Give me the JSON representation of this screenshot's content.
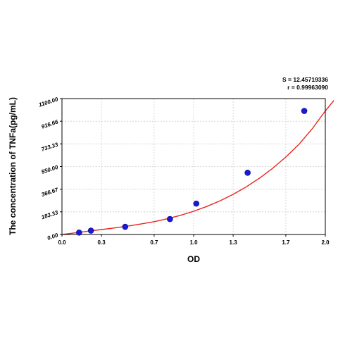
{
  "stats": {
    "s_text": "S = 12.45719336",
    "r_text": "r = 0.99963090"
  },
  "chart_data": {
    "type": "scatter",
    "title": "",
    "xlabel": "OD",
    "ylabel": "The concentration of TNFa(pg/mL)",
    "xlim": [
      0.0,
      2.0
    ],
    "ylim": [
      0.0,
      1100.0
    ],
    "x_ticks": [
      0.0,
      0.3,
      0.7,
      1.0,
      1.3,
      1.7,
      2.0
    ],
    "x_tick_labels": [
      "0.0",
      "0.3",
      "0.7",
      "1.0",
      "1.3",
      "1.7",
      "2.0"
    ],
    "y_ticks": [
      0.0,
      183.33,
      366.67,
      550.0,
      733.33,
      916.66,
      1100.0
    ],
    "y_tick_labels": [
      "0.00",
      "183.33",
      "366.67",
      "550.00",
      "733.33",
      "916.66",
      "1100.00"
    ],
    "grid": true,
    "series": [
      {
        "marker_color": "#1a1ad6",
        "points": [
          {
            "x": 0.13,
            "y": 15.6
          },
          {
            "x": 0.22,
            "y": 31.2
          },
          {
            "x": 0.48,
            "y": 62.5
          },
          {
            "x": 0.82,
            "y": 125
          },
          {
            "x": 1.02,
            "y": 250
          },
          {
            "x": 1.41,
            "y": 500
          },
          {
            "x": 1.84,
            "y": 1000
          }
        ]
      }
    ],
    "fit_curve": {
      "color": "#e8251c",
      "points": [
        {
          "x": 0.0,
          "y": 0
        },
        {
          "x": 0.1,
          "y": 13
        },
        {
          "x": 0.2,
          "y": 27
        },
        {
          "x": 0.3,
          "y": 40
        },
        {
          "x": 0.4,
          "y": 53
        },
        {
          "x": 0.5,
          "y": 68
        },
        {
          "x": 0.6,
          "y": 85
        },
        {
          "x": 0.7,
          "y": 104
        },
        {
          "x": 0.8,
          "y": 127
        },
        {
          "x": 0.9,
          "y": 155
        },
        {
          "x": 1.0,
          "y": 188
        },
        {
          "x": 1.1,
          "y": 227
        },
        {
          "x": 1.2,
          "y": 272
        },
        {
          "x": 1.3,
          "y": 325
        },
        {
          "x": 1.4,
          "y": 386
        },
        {
          "x": 1.5,
          "y": 456
        },
        {
          "x": 1.6,
          "y": 536
        },
        {
          "x": 1.7,
          "y": 627
        },
        {
          "x": 1.8,
          "y": 730
        },
        {
          "x": 1.9,
          "y": 855
        },
        {
          "x": 2.0,
          "y": 1000
        },
        {
          "x": 2.1,
          "y": 1130
        }
      ]
    }
  }
}
